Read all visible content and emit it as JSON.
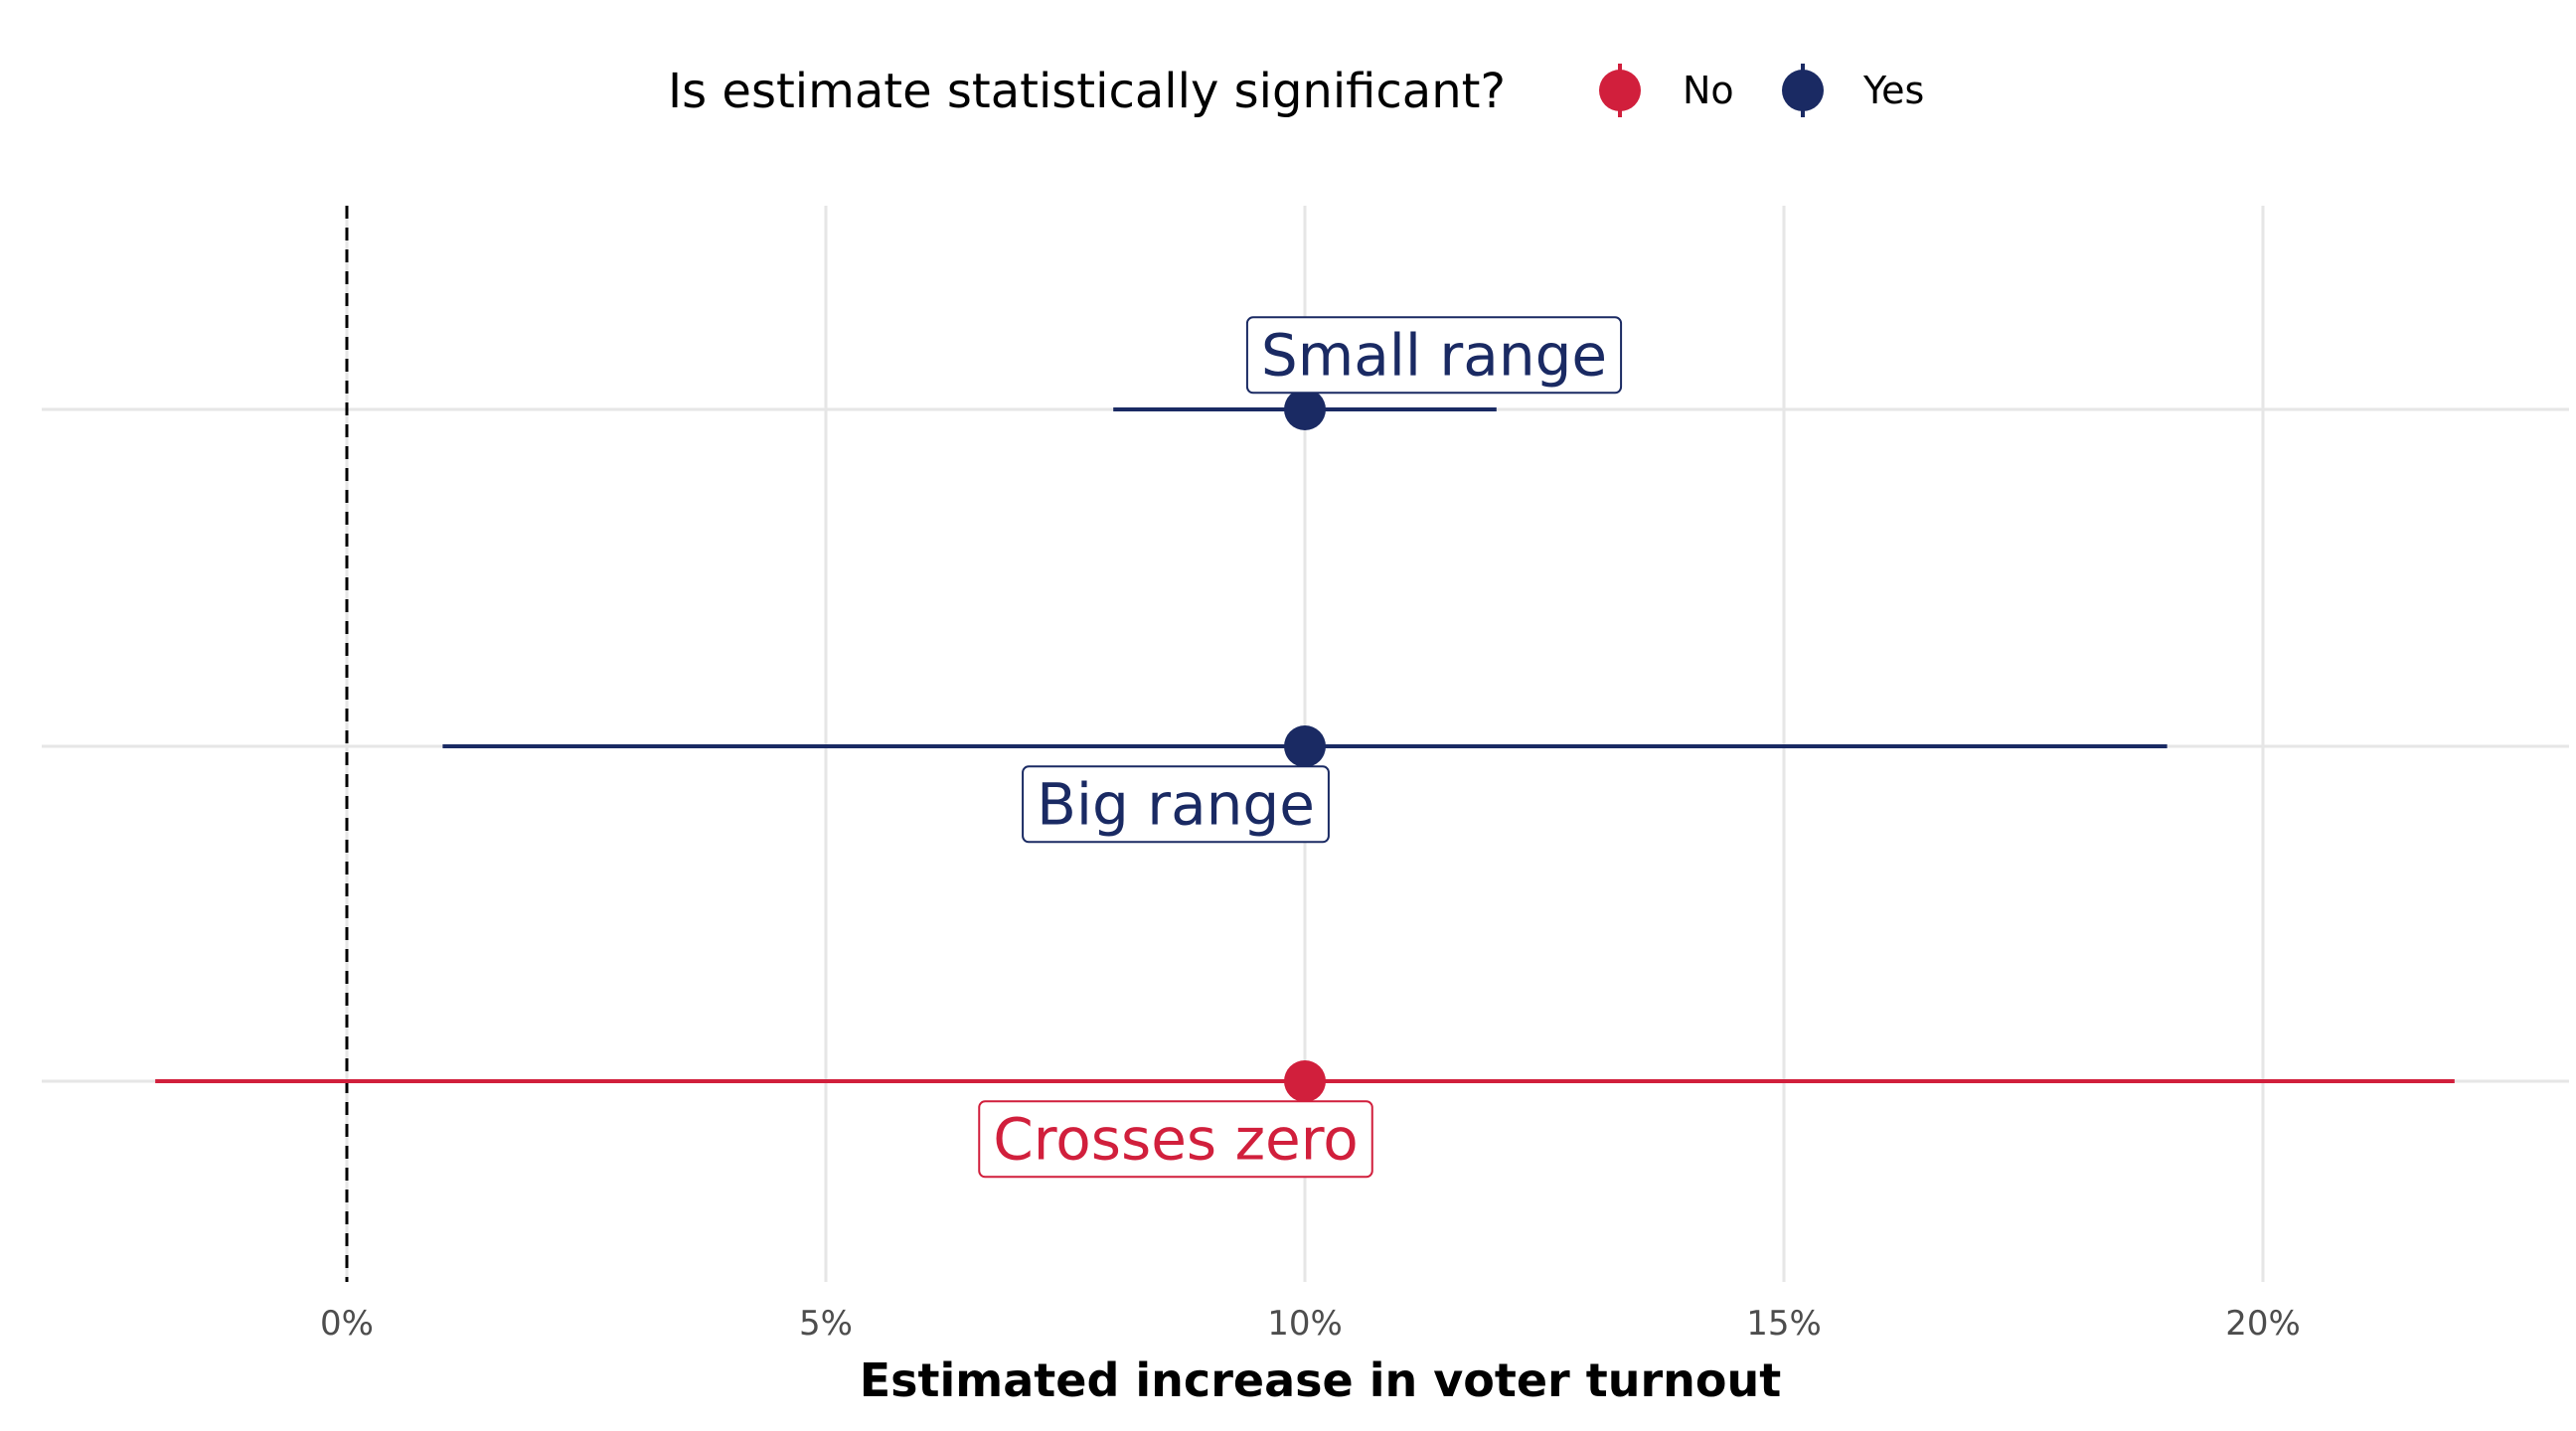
{
  "chart_data": {
    "type": "scatter",
    "subtype": "pointrange",
    "xlabel": "Estimated increase in voter turnout",
    "xlim": [
      -3.2,
      23.2
    ],
    "xticks": [
      0,
      5,
      10,
      15,
      20
    ],
    "xtick_labels": [
      "0%",
      "5%",
      "10%",
      "15%",
      "20%"
    ],
    "reference_line": {
      "x": 0,
      "style": "dashed"
    },
    "grid": true,
    "legend": {
      "title": "Is estimate statistically significant?",
      "position": "top",
      "entries": [
        {
          "label": "No",
          "color": "#d11f3c"
        },
        {
          "label": "Yes",
          "color": "#1a2a63"
        }
      ]
    },
    "series": [
      {
        "label": "Small range",
        "estimate": 10,
        "low": 8,
        "high": 12,
        "significant": "Yes",
        "label_position": "above"
      },
      {
        "label": "Big range",
        "estimate": 10,
        "low": 1,
        "high": 19,
        "significant": "Yes",
        "label_position": "below-left"
      },
      {
        "label": "Crosses zero",
        "estimate": 10,
        "low": -2,
        "high": 22,
        "significant": "No",
        "label_position": "below-left"
      }
    ]
  }
}
